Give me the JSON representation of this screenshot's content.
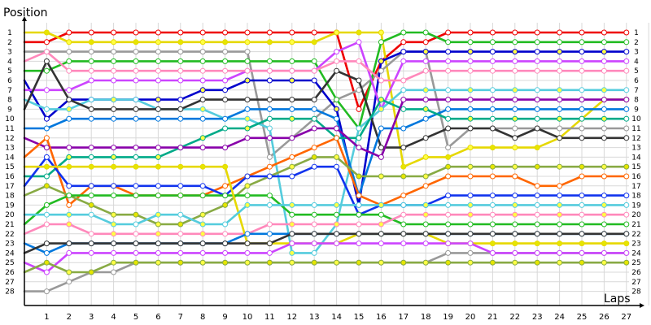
{
  "chart_data": {
    "type": "line",
    "title": "",
    "ylabel": "Position",
    "xlabel": "Laps",
    "x": [
      1,
      2,
      3,
      4,
      5,
      6,
      7,
      8,
      9,
      10,
      11,
      12,
      13,
      14,
      15,
      16,
      17,
      18,
      19,
      20,
      21,
      22,
      23,
      24,
      25,
      26,
      27
    ],
    "xlim": [
      0,
      28
    ],
    "ylim": [
      1,
      28
    ],
    "y_inverted": true,
    "y_ticks": [
      1,
      2,
      3,
      4,
      5,
      6,
      7,
      8,
      9,
      10,
      11,
      12,
      13,
      14,
      15,
      16,
      17,
      18,
      19,
      20,
      21,
      22,
      23,
      24,
      25,
      26,
      27,
      28
    ],
    "grid": true,
    "series": [
      {
        "color": "#ee0000",
        "start": 2,
        "values": [
          2,
          1,
          1,
          1,
          1,
          1,
          1,
          1,
          1,
          1,
          1,
          1,
          1,
          1,
          9,
          4,
          2,
          2,
          1,
          1,
          1,
          1,
          1,
          1,
          1,
          1,
          1
        ]
      },
      {
        "color": "#e6d800",
        "start": 1,
        "values": [
          1,
          2,
          2,
          2,
          2,
          2,
          2,
          2,
          2,
          2,
          2,
          2,
          2,
          1,
          1,
          1,
          15,
          14,
          14,
          13,
          13,
          13,
          13,
          12,
          10,
          8,
          8
        ]
      },
      {
        "color": "#999999",
        "start": 3,
        "values": [
          3,
          3,
          3,
          3,
          3,
          3,
          3,
          3,
          3,
          3,
          14,
          12,
          10,
          8,
          7,
          5,
          3,
          3,
          13,
          11,
          11,
          11,
          11,
          11,
          11,
          11,
          11
        ]
      },
      {
        "color": "#22bb22",
        "start": 5,
        "values": [
          5,
          4,
          4,
          4,
          4,
          4,
          4,
          4,
          4,
          4,
          4,
          4,
          4,
          8,
          11,
          2,
          1,
          1,
          2,
          2,
          2,
          2,
          2,
          2,
          2,
          2,
          2
        ]
      },
      {
        "color": "#0000cc",
        "start": 6,
        "values": [
          10,
          8,
          8,
          8,
          8,
          8,
          8,
          7,
          7,
          6,
          6,
          6,
          6,
          9,
          19,
          4,
          3,
          3,
          3,
          3,
          3,
          3,
          3,
          3,
          3,
          3,
          3
        ]
      },
      {
        "color": "#cc44ff",
        "start": 7,
        "values": [
          7,
          7,
          6,
          6,
          6,
          6,
          6,
          6,
          6,
          5,
          5,
          5,
          5,
          3,
          2,
          9,
          4,
          4,
          4,
          4,
          4,
          4,
          4,
          4,
          4,
          4,
          4
        ]
      },
      {
        "color": "#ff88bb",
        "start": 4,
        "values": [
          3,
          5,
          5,
          5,
          5,
          5,
          5,
          5,
          5,
          5,
          5,
          5,
          5,
          4,
          4,
          6,
          6,
          5,
          5,
          5,
          5,
          5,
          5,
          5,
          5,
          5,
          5
        ]
      },
      {
        "color": "#55ccdd",
        "start": 8,
        "values": [
          9,
          9,
          8,
          8,
          8,
          9,
          9,
          9,
          10,
          10,
          11,
          24,
          24,
          21,
          11,
          9,
          7,
          7,
          7,
          7,
          7,
          7,
          7,
          7,
          7,
          7,
          7
        ]
      },
      {
        "color": "#333333",
        "start": 9,
        "values": [
          4,
          8,
          9,
          9,
          9,
          9,
          9,
          8,
          8,
          8,
          8,
          8,
          8,
          5,
          6,
          13,
          13,
          12,
          11,
          11,
          11,
          12,
          11,
          12,
          12,
          12,
          12
        ]
      },
      {
        "color": "#0077dd",
        "start": 11,
        "values": [
          11,
          10,
          10,
          10,
          10,
          10,
          10,
          10,
          10,
          9,
          9,
          9,
          9,
          10,
          18,
          11,
          11,
          10,
          9,
          9,
          9,
          9,
          9,
          9,
          9,
          9,
          9
        ]
      },
      {
        "color": "#00aa88",
        "start": 16,
        "values": [
          16,
          14,
          14,
          14,
          14,
          14,
          13,
          12,
          11,
          11,
          10,
          10,
          10,
          12,
          12,
          8,
          9,
          9,
          10,
          10,
          10,
          10,
          10,
          10,
          10,
          10,
          10
        ]
      },
      {
        "color": "#8800aa",
        "start": 12,
        "values": [
          13,
          13,
          13,
          13,
          13,
          13,
          13,
          13,
          13,
          12,
          12,
          12,
          11,
          11,
          13,
          14,
          8,
          8,
          8,
          8,
          8,
          8,
          8,
          8,
          8,
          8,
          8
        ]
      },
      {
        "color": "#ff6600",
        "start": 14,
        "values": [
          12,
          19,
          17,
          17,
          18,
          18,
          18,
          18,
          17,
          16,
          15,
          14,
          13,
          12,
          18,
          19,
          18,
          17,
          16,
          16,
          16,
          16,
          17,
          17,
          16,
          16,
          16
        ]
      },
      {
        "color": "#88aa44",
        "start": 18,
        "values": [
          17,
          18,
          19,
          20,
          20,
          21,
          21,
          20,
          19,
          17,
          16,
          15,
          14,
          14,
          16,
          16,
          16,
          16,
          15,
          15,
          15,
          15,
          15,
          15,
          15,
          15,
          15
        ]
      },
      {
        "color": "#1133ee",
        "start": 17,
        "values": [
          14,
          17,
          17,
          17,
          17,
          17,
          17,
          17,
          18,
          16,
          16,
          16,
          15,
          15,
          20,
          19,
          19,
          19,
          18,
          18,
          18,
          18,
          18,
          18,
          18,
          18,
          18
        ]
      },
      {
        "color": "#22bb22",
        "start": 21,
        "values": [
          19,
          18,
          18,
          18,
          18,
          18,
          18,
          18,
          18,
          18,
          18,
          20,
          20,
          20,
          20,
          20,
          21,
          21,
          21,
          21,
          21,
          21,
          21,
          21,
          21,
          21,
          21
        ]
      },
      {
        "color": "#ff88bb",
        "start": 22,
        "values": [
          21,
          21,
          22,
          22,
          22,
          22,
          22,
          22,
          22,
          22,
          21,
          21,
          21,
          21,
          21,
          21,
          20,
          20,
          20,
          20,
          20,
          20,
          20,
          20,
          20,
          20,
          20
        ]
      },
      {
        "color": "#e6d800",
        "start": 15,
        "values": [
          15,
          15,
          15,
          15,
          15,
          15,
          15,
          15,
          15,
          23,
          23,
          23,
          23,
          23,
          22,
          22,
          22,
          22,
          23,
          23,
          23,
          23,
          23,
          23,
          23,
          23,
          23
        ]
      },
      {
        "color": "#0077dd",
        "start": 23,
        "values": [
          24,
          23,
          23,
          23,
          23,
          23,
          23,
          23,
          23,
          22,
          22,
          22,
          22,
          22,
          22,
          22,
          22,
          22,
          22,
          22,
          22,
          22,
          22,
          22,
          22,
          22,
          22
        ]
      },
      {
        "color": "#55ccdd",
        "start": 20,
        "values": [
          20,
          20,
          20,
          21,
          21,
          20,
          20,
          21,
          21,
          19,
          19,
          19,
          19,
          19,
          19,
          19,
          19,
          19,
          19,
          19,
          19,
          19,
          19,
          19,
          19,
          19,
          19
        ]
      },
      {
        "color": "#999999",
        "start": 28,
        "values": [
          28,
          27,
          26,
          26,
          25,
          25,
          25,
          25,
          25,
          25,
          25,
          25,
          25,
          25,
          25,
          25,
          25,
          25,
          24,
          24,
          24,
          24,
          24,
          24,
          24,
          24,
          24
        ]
      },
      {
        "color": "#cc44ff",
        "start": 25,
        "values": [
          26,
          24,
          24,
          24,
          24,
          24,
          24,
          24,
          24,
          24,
          24,
          23,
          23,
          23,
          23,
          23,
          23,
          23,
          23,
          23,
          24,
          24,
          24,
          24,
          24,
          24,
          24
        ]
      },
      {
        "color": "#88aa44",
        "start": 26,
        "values": [
          25,
          26,
          26,
          25,
          25,
          25,
          25,
          25,
          25,
          25,
          25,
          25,
          25,
          25,
          25,
          25,
          25,
          25,
          25,
          25,
          25,
          25,
          25,
          25,
          25,
          25,
          25
        ]
      },
      {
        "color": "#333333",
        "start": 24,
        "values": [
          23,
          23,
          23,
          23,
          23,
          23,
          23,
          23,
          23,
          23,
          23,
          22,
          22,
          22,
          22,
          22,
          22,
          22,
          22,
          22,
          22,
          22,
          22,
          22,
          22,
          22,
          22
        ]
      }
    ]
  }
}
